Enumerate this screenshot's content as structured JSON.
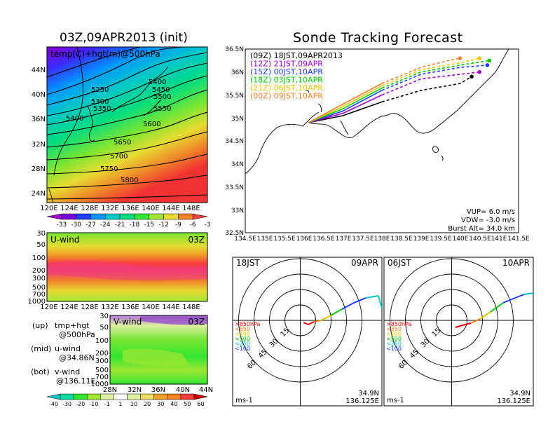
{
  "left_title": "03Z,09APR2013 (init)",
  "right_title": "Sonde Tracking Forecast",
  "upper_panel": {
    "label": "temp(C)+hgt(m)@500hPa",
    "lat_ticks": [
      "44N",
      "40N",
      "36N",
      "32N",
      "28N",
      "24N"
    ],
    "lon_ticks": [
      "120E",
      "124E",
      "128E",
      "132E",
      "136E",
      "140E",
      "144E",
      "148E"
    ],
    "contours": [
      "5250",
      "5300",
      "5350",
      "5400",
      "5400",
      "5450",
      "5500",
      "5550",
      "5600",
      "5650",
      "5700",
      "5750",
      "5800"
    ]
  },
  "temp_colorbar": {
    "labels": [
      "-33",
      "-30",
      "-27",
      "-24",
      "-21",
      "-18",
      "-15",
      "-12",
      "-9",
      "-6",
      "-3"
    ],
    "colors": [
      "#a000c8",
      "#7800dc",
      "#1e3cff",
      "#0096ff",
      "#00c8c8",
      "#00dc82",
      "#32e632",
      "#a0e632",
      "#e6dc32",
      "#f08228",
      "#fa3c3c"
    ]
  },
  "u_panel": {
    "label": "U-wind",
    "time": "03Z",
    "p_ticks": [
      "30",
      "50",
      "100",
      "200",
      "300",
      "500",
      "700",
      "1000"
    ],
    "lon_ticks": [
      "120E",
      "124E",
      "128E",
      "132E",
      "136E",
      "140E",
      "144E",
      "148E"
    ]
  },
  "v_panel": {
    "label": "V-wind",
    "time": "03Z",
    "p_ticks": [
      "30",
      "50",
      "100",
      "200",
      "300",
      "500",
      "700",
      "1000"
    ],
    "lat_ticks": [
      "28N",
      "32N",
      "36N",
      "40N",
      "44N"
    ]
  },
  "wind_colorbar": {
    "labels": [
      "-40",
      "-30",
      "-20",
      "-10",
      "-1",
      "1",
      "10",
      "20",
      "30",
      "40",
      "50",
      "60"
    ],
    "colors": [
      "#00c8c8",
      "#00dca0",
      "#32e632",
      "#a0e632",
      "#dcf0a0",
      "#ffffff",
      "#dcf0a0",
      "#f0dc64",
      "#f0a028",
      "#f08228",
      "#fa3c3c",
      "#c80000"
    ]
  },
  "panel_notes": [
    {
      "key": "(up)",
      "lines": [
        "tmp+hgt",
        "@500hPa"
      ]
    },
    {
      "key": "(mid)",
      "lines": [
        "u-wind",
        "@34.86N"
      ]
    },
    {
      "key": "(bot)",
      "lines": [
        "v-wind",
        "@136.11E"
      ]
    }
  ],
  "track_map": {
    "lat_ticks": [
      "36.5N",
      "36N",
      "35.5N",
      "35N",
      "34.5N",
      "34N",
      "33.5N",
      "33N",
      "32.5N"
    ],
    "lon_ticks": [
      "134.5E",
      "135E",
      "135.5E",
      "136E",
      "136.5E",
      "137E",
      "137.5E",
      "138E",
      "138.5E",
      "139E",
      "139.5E",
      "140E",
      "140.5E",
      "141E",
      "141.5E"
    ],
    "vup": "VUP=  6.0 m/s",
    "vdw": "VDW= -3.0 m/s",
    "burst": "Burst Alt= 34.0 km"
  },
  "chart_data": {
    "type": "line",
    "title": "Sonde Tracking Forecast",
    "xlim": [
      134.5,
      141.5
    ],
    "ylim": [
      32.5,
      36.5
    ],
    "launch": {
      "lon": 136.125,
      "lat": 34.9
    },
    "series": [
      {
        "name": "(09Z)  18JST,09APR2013",
        "color": "#000000",
        "x": [
          136.125,
          137.0,
          138.0,
          139.0,
          140.0,
          140.3
        ],
        "y": [
          34.9,
          35.05,
          35.35,
          35.6,
          35.75,
          35.9
        ]
      },
      {
        "name": "(12Z)  21JST,09APR",
        "color": "#a000c8",
        "x": [
          136.125,
          137.0,
          138.0,
          139.0,
          140.0,
          140.5
        ],
        "y": [
          34.9,
          35.1,
          35.5,
          35.85,
          35.95,
          36.0
        ]
      },
      {
        "name": "(15Z)  00JST,10APR",
        "color": "#1e3cff",
        "x": [
          136.125,
          137.0,
          138.0,
          139.0,
          140.0,
          140.7
        ],
        "y": [
          34.9,
          35.15,
          35.6,
          35.95,
          36.1,
          36.15
        ]
      },
      {
        "name": "(18Z)  03JST,10APR",
        "color": "#00c800",
        "x": [
          136.125,
          137.0,
          138.0,
          139.0,
          140.0,
          140.75
        ],
        "y": [
          34.9,
          35.2,
          35.65,
          36.0,
          36.15,
          36.25
        ]
      },
      {
        "name": "(21Z)  06JST,10APR",
        "color": "#e6c800",
        "x": [
          136.125,
          137.0,
          138.0,
          139.0,
          140.0,
          140.5
        ],
        "y": [
          34.9,
          35.25,
          35.7,
          36.05,
          36.2,
          36.3
        ]
      },
      {
        "name": "(00Z)  09JST,10APR",
        "color": "#f08228",
        "x": [
          136.125,
          137.0,
          138.0,
          139.0,
          139.7,
          140.0
        ],
        "y": [
          34.9,
          35.3,
          35.75,
          36.1,
          36.25,
          36.3
        ]
      }
    ]
  },
  "hodographs": [
    {
      "time_label": "18JST",
      "date_label": "09APR",
      "rings": [
        "15",
        "30",
        "45",
        "60"
      ],
      "levels": [
        ">850hPa",
        "<850",
        "<700",
        "<500",
        "<250",
        "<100"
      ],
      "level_colors": [
        "#e60000",
        "#f08228",
        "#e6c800",
        "#00c800",
        "#00c8c8",
        "#1e3cff"
      ],
      "unit": "ms-1",
      "loc_lat": "34.9N",
      "loc_lon": "136.125E"
    },
    {
      "time_label": "06JST",
      "date_label": "10APR",
      "rings": [
        "15",
        "30",
        "45",
        "60"
      ],
      "levels": [
        ">850hPa",
        "<850",
        "<700",
        "<500",
        "<250",
        "<100"
      ],
      "level_colors": [
        "#e60000",
        "#f08228",
        "#e6c800",
        "#00c800",
        "#00c8c8",
        "#1e3cff"
      ],
      "unit": "ms-1",
      "loc_lat": "34.9N",
      "loc_lon": "136.125E"
    }
  ]
}
